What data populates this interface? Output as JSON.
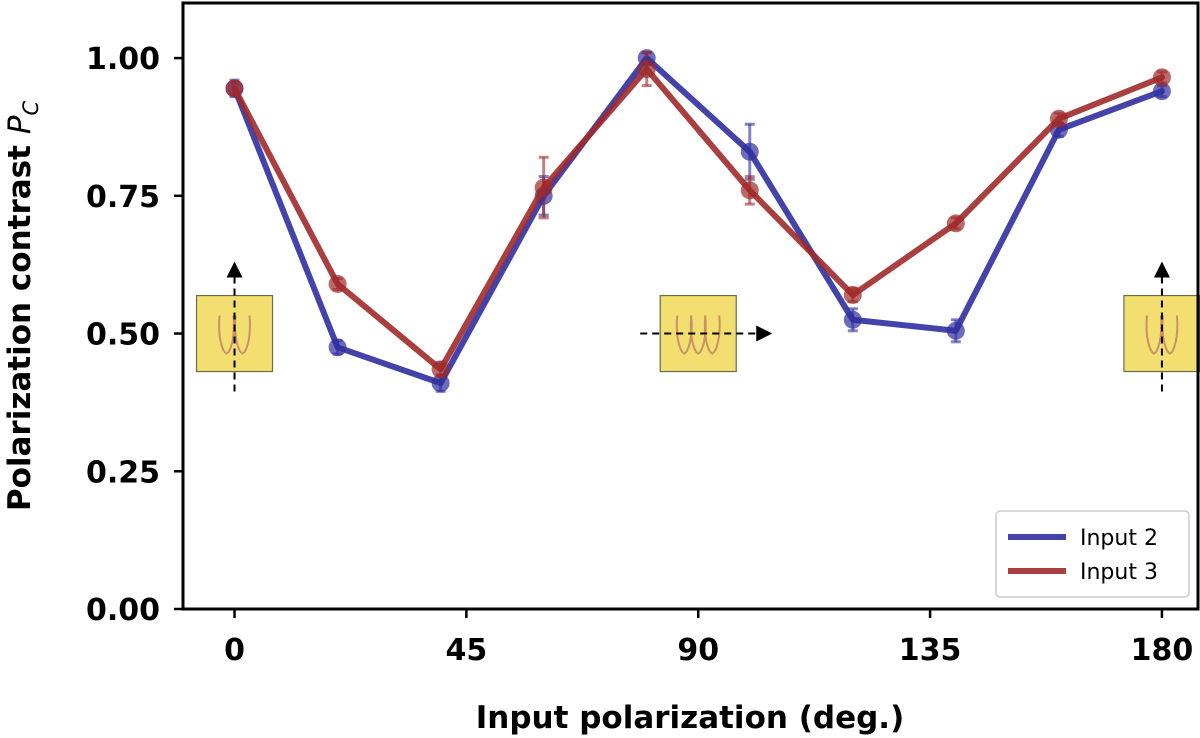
{
  "chart_data": {
    "type": "line",
    "title": "",
    "xlabel": "Input polarization (deg.)",
    "ylabel_main": "Polarization contrast ",
    "ylabel_symbol": "P",
    "ylabel_subscript": "C",
    "xlim": [
      -10,
      187
    ],
    "ylim": [
      0,
      1.1
    ],
    "xticks": [
      0,
      45,
      90,
      135,
      180
    ],
    "xtick_labels": [
      "0",
      "45",
      "90",
      "135",
      "180"
    ],
    "yticks": [
      0,
      0.25,
      0.5,
      0.75,
      1.0
    ],
    "ytick_labels": [
      "0.00",
      "0.25",
      "0.50",
      "0.75",
      "1.00"
    ],
    "grid": false,
    "legend_position": "bottom-right",
    "x": [
      0,
      20,
      40,
      60,
      80,
      100,
      120,
      140,
      160,
      180
    ],
    "series": [
      {
        "name": "Input 2",
        "color": "#2f2fa0",
        "values": [
          0.945,
          0.475,
          0.41,
          0.75,
          1.0,
          0.83,
          0.525,
          0.505,
          0.87,
          0.94
        ],
        "errors": [
          0.015,
          0.012,
          0.015,
          0.035,
          0.01,
          0.05,
          0.02,
          0.02,
          0.012,
          0.01
        ]
      },
      {
        "name": "Input 3",
        "color": "#a02a2a",
        "values": [
          0.945,
          0.59,
          0.435,
          0.765,
          0.98,
          0.76,
          0.57,
          0.7,
          0.89,
          0.965
        ],
        "errors": [
          0.01,
          0.01,
          0.012,
          0.055,
          0.03,
          0.025,
          0.012,
          0.01,
          0.01,
          0.01
        ]
      }
    ],
    "insets": [
      {
        "name": "inset-vertical-0",
        "x": 0,
        "arrow": "up"
      },
      {
        "name": "inset-horizontal-90",
        "x": 90,
        "arrow": "right"
      },
      {
        "name": "inset-vertical-180",
        "x": 180,
        "arrow": "up"
      }
    ],
    "inset_colors": {
      "fill": "#f2df70",
      "stroke": "#6a6a4a",
      "device": "#c9906a"
    }
  }
}
